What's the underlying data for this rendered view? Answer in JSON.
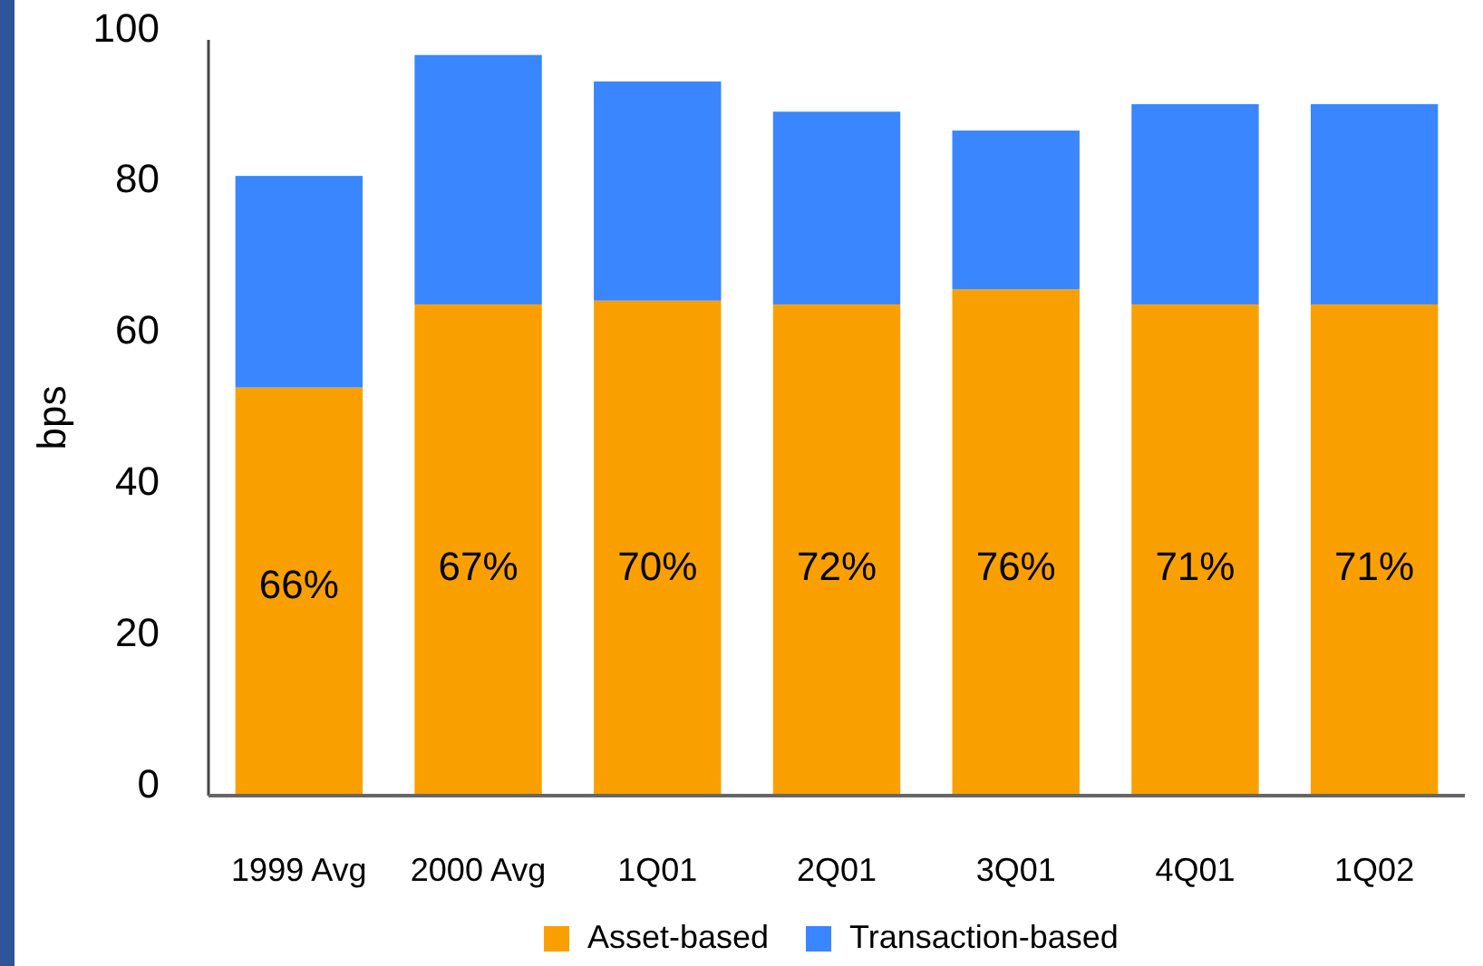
{
  "chart_data": {
    "type": "bar",
    "stacked": true,
    "ylabel": "bps",
    "categories": [
      "1999 Avg",
      "2000 Avg",
      "1Q01",
      "2Q01",
      "3Q01",
      "4Q01",
      "1Q02"
    ],
    "series": [
      {
        "name": "Asset-based",
        "color": "#f9a000",
        "values": [
          54,
          65,
          65.5,
          65,
          67,
          65,
          65
        ]
      },
      {
        "name": "Transaction-based",
        "color": "#3a86fe",
        "values": [
          28,
          33,
          29,
          25.5,
          21,
          26.5,
          26.5
        ]
      }
    ],
    "annotations": [
      "66%",
      "67%",
      "70%",
      "72%",
      "76%",
      "71%",
      "71%"
    ],
    "ylim": [
      0,
      100
    ],
    "yticks": [
      0,
      20,
      40,
      60,
      80,
      100
    ],
    "grid": false,
    "legend": "bottom"
  }
}
